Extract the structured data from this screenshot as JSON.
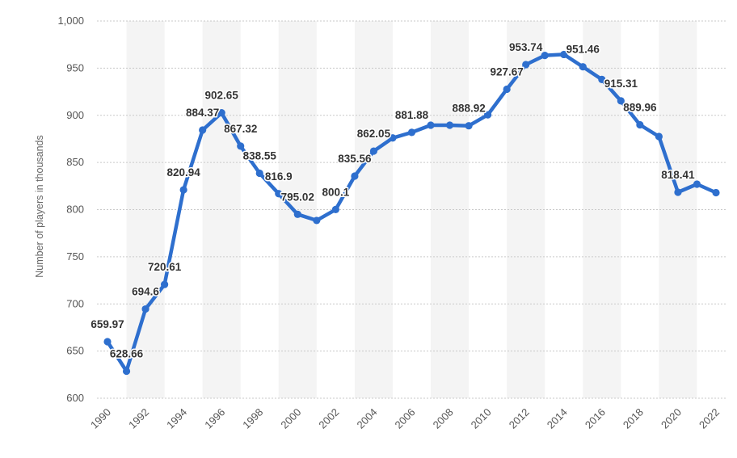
{
  "chart_data": {
    "type": "line",
    "title": "",
    "xlabel": "",
    "ylabel": "Number of players in thousands",
    "ylim": [
      600,
      1000
    ],
    "yticks": [
      600,
      650,
      700,
      750,
      800,
      850,
      900,
      950,
      1000
    ],
    "ytick_labels": [
      "600",
      "650",
      "700",
      "750",
      "800",
      "850",
      "900",
      "950",
      "1,000"
    ],
    "xlim": [
      1990,
      2022
    ],
    "xticks": [
      1990,
      1992,
      1994,
      1996,
      1998,
      2000,
      2002,
      2004,
      2006,
      2008,
      2010,
      2012,
      2014,
      2016,
      2018,
      2020,
      2022
    ],
    "grid": true,
    "color": "#2e6fce",
    "series": [
      {
        "name": "Number of players",
        "x": [
          1990,
          1991,
          1992,
          1993,
          1994,
          1995,
          1996,
          1997,
          1998,
          1999,
          2000,
          2001,
          2002,
          2003,
          2004,
          2005,
          2006,
          2007,
          2008,
          2009,
          2010,
          2011,
          2012,
          2013,
          2014,
          2015,
          2016,
          2017,
          2018,
          2019,
          2020,
          2021,
          2022
        ],
        "values": [
          659.97,
          628.66,
          694.6,
          720.61,
          820.94,
          884.37,
          902.65,
          867.32,
          838.55,
          816.9,
          795.02,
          788.5,
          800.1,
          835.56,
          862.05,
          876.0,
          881.88,
          889.5,
          889.5,
          888.92,
          900.5,
          927.67,
          953.74,
          963.5,
          964.5,
          951.46,
          938.0,
          915.31,
          889.96,
          877.5,
          818.41,
          827.0,
          818.0
        ]
      }
    ],
    "data_labels": [
      {
        "x": 1990,
        "text": "659.97"
      },
      {
        "x": 1991,
        "text": "628.66"
      },
      {
        "x": 1992,
        "text": "694.6"
      },
      {
        "x": 1993,
        "text": "720.61"
      },
      {
        "x": 1994,
        "text": "820.94"
      },
      {
        "x": 1995,
        "text": "884.37"
      },
      {
        "x": 1996,
        "text": "902.65"
      },
      {
        "x": 1997,
        "text": "867.32"
      },
      {
        "x": 1998,
        "text": "838.55"
      },
      {
        "x": 1999,
        "text": "816.9"
      },
      {
        "x": 2000,
        "text": "795.02"
      },
      {
        "x": 2002,
        "text": "800.1"
      },
      {
        "x": 2003,
        "text": "835.56"
      },
      {
        "x": 2004,
        "text": "862.05"
      },
      {
        "x": 2006,
        "text": "881.88"
      },
      {
        "x": 2009,
        "text": "888.92"
      },
      {
        "x": 2011,
        "text": "927.67"
      },
      {
        "x": 2012,
        "text": "953.74"
      },
      {
        "x": 2015,
        "text": "951.46"
      },
      {
        "x": 2017,
        "text": "915.31"
      },
      {
        "x": 2018,
        "text": "889.96"
      },
      {
        "x": 2020,
        "text": "818.41"
      }
    ]
  }
}
